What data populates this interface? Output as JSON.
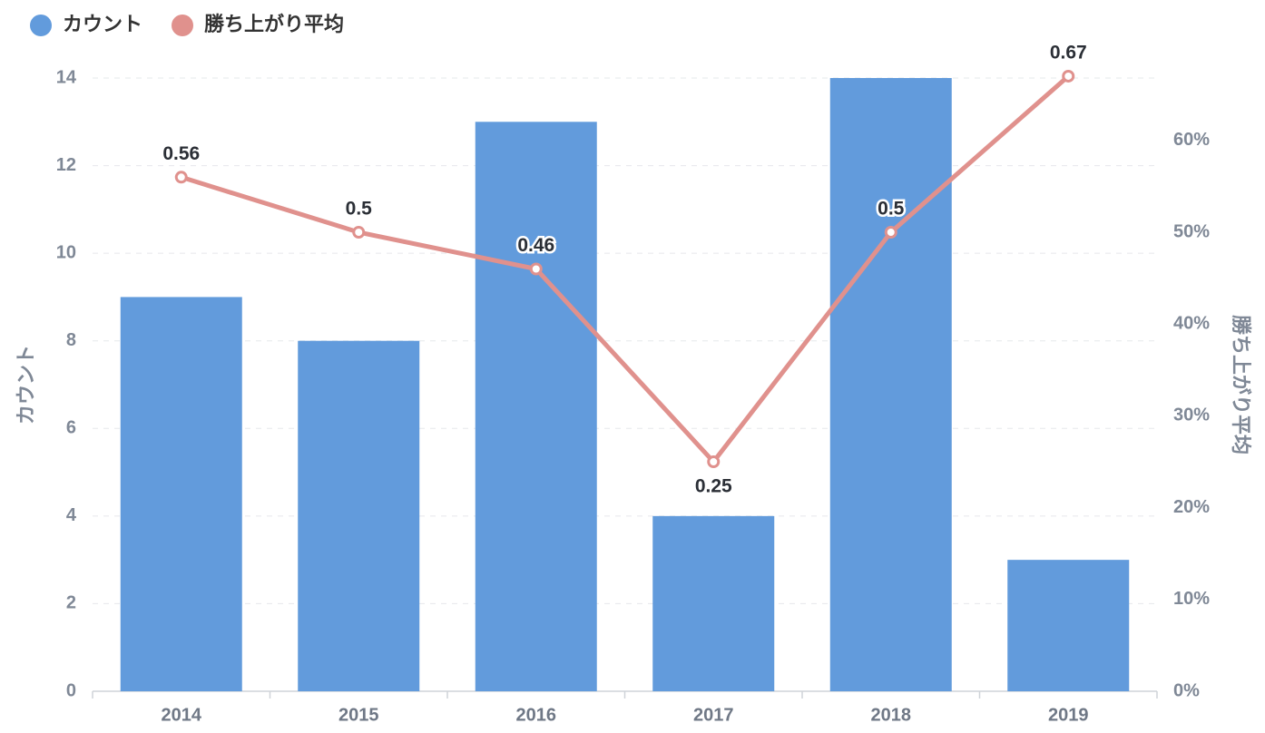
{
  "chart_data": {
    "type": "combo",
    "categories": [
      "2014",
      "2015",
      "2016",
      "2017",
      "2018",
      "2019"
    ],
    "series": [
      {
        "name": "カウント",
        "type": "bar",
        "color": "#629bdc",
        "values": [
          9,
          8,
          13,
          4,
          14,
          3
        ]
      },
      {
        "name": "勝ち上がり平均",
        "type": "line",
        "axis": "y2",
        "color": "#e0918d",
        "values": [
          0.56,
          0.5,
          0.46,
          0.25,
          0.5,
          0.67
        ]
      }
    ],
    "ylabel": "カウント",
    "y2label": "勝ち上がり平均",
    "ylim": [
      0,
      14
    ],
    "yticks": [
      0,
      2,
      4,
      6,
      8,
      10,
      12,
      14
    ],
    "y2lim": [
      0,
      0.668
    ],
    "y2ticks": [
      {
        "value": 0,
        "label": "0%"
      },
      {
        "value": 0.1,
        "label": "10%"
      },
      {
        "value": 0.2,
        "label": "20%"
      },
      {
        "value": 0.3,
        "label": "30%"
      },
      {
        "value": 0.4,
        "label": "40%"
      },
      {
        "value": 0.5,
        "label": "50%"
      },
      {
        "value": 0.6,
        "label": "60%"
      }
    ],
    "grid": true,
    "legend": "top-left"
  }
}
